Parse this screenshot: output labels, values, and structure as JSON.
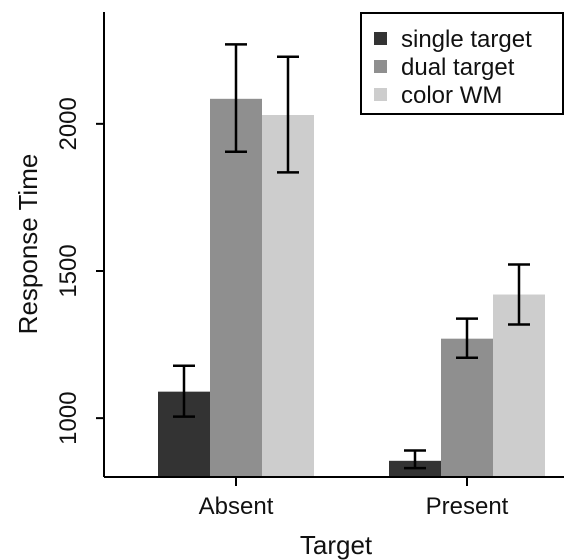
{
  "chart_data": {
    "type": "bar",
    "title": "",
    "xlabel": "Target",
    "ylabel": "Response Time",
    "categories": [
      "Absent",
      "Present"
    ],
    "ylim": [
      800,
      2380
    ],
    "yticks": [
      1000,
      1500,
      2000
    ],
    "ytick_labels": [
      "1000",
      "1500",
      "2000"
    ],
    "error_bars": true,
    "grid": false,
    "legend_position": "top-right",
    "series": [
      {
        "name": "single target",
        "color": "#333333",
        "values": [
          1090,
          855
        ],
        "err_low": [
          1005,
          830
        ],
        "err_high": [
          1178,
          890
        ]
      },
      {
        "name": "dual target",
        "color": "#8f8f8f",
        "values": [
          2085,
          1270
        ],
        "err_low": [
          1905,
          1205
        ],
        "err_high": [
          2270,
          1338
        ]
      },
      {
        "name": "color WM",
        "color": "#cdcdcd",
        "values": [
          2030,
          1420
        ],
        "err_low": [
          1835,
          1318
        ],
        "err_high": [
          2228,
          1522
        ]
      }
    ]
  }
}
